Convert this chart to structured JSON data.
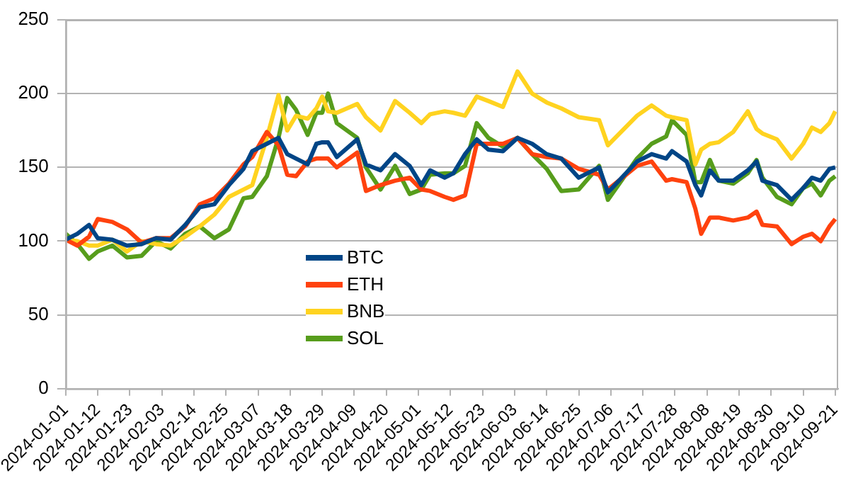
{
  "chart_data": {
    "type": "line",
    "x": [
      "2024-01-01",
      "2024-01-05",
      "2024-01-09",
      "2024-01-12",
      "2024-01-17",
      "2024-01-22",
      "2024-01-27",
      "2024-02-01",
      "2024-02-06",
      "2024-02-11",
      "2024-02-16",
      "2024-02-21",
      "2024-02-26",
      "2024-03-02",
      "2024-03-05",
      "2024-03-10",
      "2024-03-14",
      "2024-03-17",
      "2024-03-20",
      "2024-03-24",
      "2024-03-27",
      "2024-03-29",
      "2024-03-31",
      "2024-04-03",
      "2024-04-10",
      "2024-04-13",
      "2024-04-18",
      "2024-04-23",
      "2024-04-28",
      "2024-05-02",
      "2024-05-05",
      "2024-05-10",
      "2024-05-13",
      "2024-05-17",
      "2024-05-21",
      "2024-05-25",
      "2024-05-30",
      "2024-06-04",
      "2024-06-09",
      "2024-06-14",
      "2024-06-19",
      "2024-06-25",
      "2024-07-02",
      "2024-07-05",
      "2024-07-15",
      "2024-07-20",
      "2024-07-25",
      "2024-07-27",
      "2024-08-01",
      "2024-08-04",
      "2024-08-06",
      "2024-08-09",
      "2024-08-12",
      "2024-08-17",
      "2024-08-22",
      "2024-08-25",
      "2024-08-27",
      "2024-09-01",
      "2024-09-06",
      "2024-09-10",
      "2024-09-13",
      "2024-09-16",
      "2024-09-19",
      "2024-09-21"
    ],
    "series": [
      {
        "name": "BTC",
        "color": "#004586",
        "values": [
          101,
          105,
          111,
          102,
          101,
          97,
          98,
          102,
          101,
          111,
          123,
          125,
          138,
          149,
          161,
          166,
          170,
          159,
          156,
          152,
          166,
          167,
          167,
          157,
          169,
          152,
          148,
          159,
          151,
          138,
          148,
          143,
          146,
          159,
          169,
          162,
          161,
          170,
          166,
          159,
          156,
          143,
          150,
          133,
          154,
          159,
          156,
          161,
          154,
          138,
          131,
          148,
          141,
          141,
          148,
          154,
          141,
          138,
          128,
          136,
          143,
          141,
          149,
          150
        ]
      },
      {
        "name": "ETH",
        "color": "#ff420e",
        "values": [
          101,
          97,
          103,
          115,
          113,
          108,
          99,
          102,
          102,
          110,
          125,
          129,
          139,
          152,
          157,
          174,
          165,
          145,
          144,
          154,
          156,
          156,
          156,
          150,
          160,
          134,
          138,
          141,
          143,
          135,
          134,
          130,
          128,
          131,
          166,
          166,
          166,
          170,
          159,
          157,
          156,
          149,
          145,
          135,
          151,
          154,
          141,
          142,
          140,
          122,
          105,
          116,
          116,
          114,
          116,
          120,
          111,
          110,
          98,
          103,
          105,
          100,
          110,
          115
        ]
      },
      {
        "name": "BNB",
        "color": "#ffd320",
        "values": [
          101,
          100,
          97,
          97,
          101,
          93,
          100,
          98,
          97,
          103,
          110,
          118,
          130,
          135,
          138,
          170,
          199,
          175,
          185,
          183,
          190,
          198,
          188,
          187,
          193,
          184,
          175,
          195,
          187,
          180,
          186,
          188,
          187,
          185,
          198,
          195,
          191,
          215,
          200,
          194,
          190,
          184,
          182,
          165,
          185,
          192,
          185,
          184,
          182,
          152,
          162,
          166,
          167,
          174,
          188,
          176,
          173,
          169,
          156,
          166,
          177,
          174,
          180,
          188
        ]
      },
      {
        "name": "SOL",
        "color": "#579d1c",
        "values": [
          105,
          98,
          88,
          93,
          97,
          89,
          90,
          100,
          95,
          105,
          110,
          102,
          108,
          129,
          130,
          144,
          170,
          197,
          189,
          172,
          187,
          187,
          200,
          180,
          170,
          150,
          135,
          151,
          132,
          135,
          145,
          146,
          146,
          151,
          180,
          170,
          164,
          170,
          159,
          149,
          134,
          135,
          151,
          128,
          156,
          166,
          171,
          182,
          172,
          140,
          140,
          155,
          141,
          139,
          146,
          155,
          143,
          130,
          125,
          136,
          139,
          131,
          141,
          144
        ]
      }
    ],
    "xlim": [
      "2024-01-01",
      "2024-09-22"
    ],
    "xticks": [
      "2024-01-01",
      "2024-01-12",
      "2024-01-23",
      "2024-02-03",
      "2024-02-14",
      "2024-02-25",
      "2024-03-07",
      "2024-03-18",
      "2024-03-29",
      "2024-04-09",
      "2024-04-20",
      "2024-05-01",
      "2024-05-12",
      "2024-05-23",
      "2024-06-03",
      "2024-06-14",
      "2024-06-25",
      "2024-07-06",
      "2024-07-17",
      "2024-07-28",
      "2024-08-08",
      "2024-08-19",
      "2024-08-30",
      "2024-09-10",
      "2024-09-21"
    ],
    "ylim": [
      0,
      250
    ],
    "yticks": [
      0,
      50,
      100,
      150,
      200,
      250
    ],
    "grid": "y",
    "legend": "left",
    "marker": "none",
    "line_style": "solid"
  }
}
